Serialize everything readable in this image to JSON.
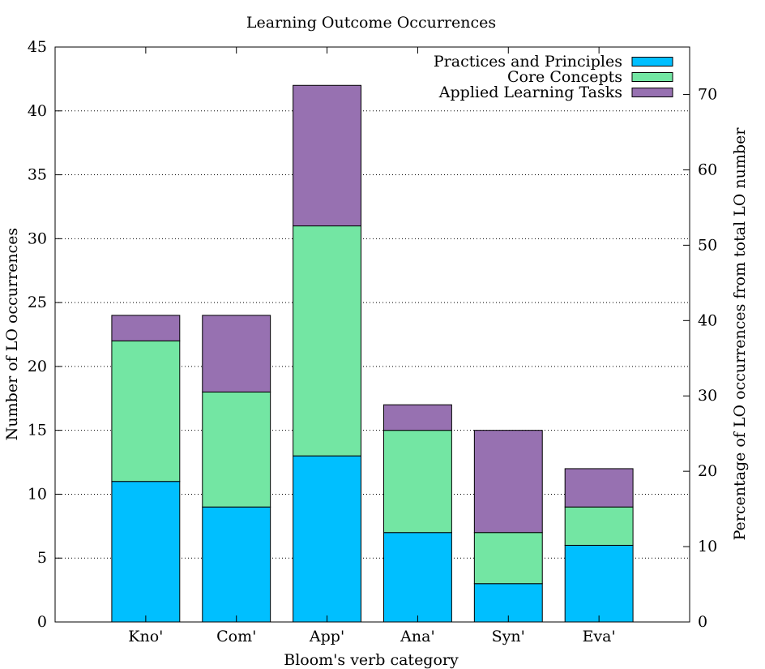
{
  "chart_data": {
    "type": "bar",
    "stacked": true,
    "title": "Learning Outcome Occurrences",
    "xlabel": "Bloom's verb category",
    "ylabel": "Number of LO occurrences",
    "y2label": "Percentage of LO occurrences from total LO number",
    "categories": [
      "Kno'",
      "Com'",
      "App'",
      "Ana'",
      "Syn'",
      "Eva'"
    ],
    "series": [
      {
        "name": "Practices and Principles",
        "color": "#00bfff",
        "values": [
          11,
          9,
          13,
          7,
          3,
          6
        ]
      },
      {
        "name": "Core Concepts",
        "color": "#73e6a3",
        "values": [
          11,
          9,
          18,
          8,
          4,
          3
        ]
      },
      {
        "name": "Applied Learning Tasks",
        "color": "#9771b1",
        "values": [
          2,
          6,
          11,
          2,
          8,
          3
        ]
      }
    ],
    "ylim": [
      0,
      45
    ],
    "yticks": [
      0,
      5,
      10,
      15,
      20,
      25,
      30,
      35,
      40,
      45
    ],
    "y2lim": [
      0,
      76.3
    ],
    "y2ticks": [
      0,
      10,
      20,
      30,
      40,
      50,
      60,
      70
    ],
    "grid": "horizontal dotted",
    "legend_position": "top-right"
  }
}
